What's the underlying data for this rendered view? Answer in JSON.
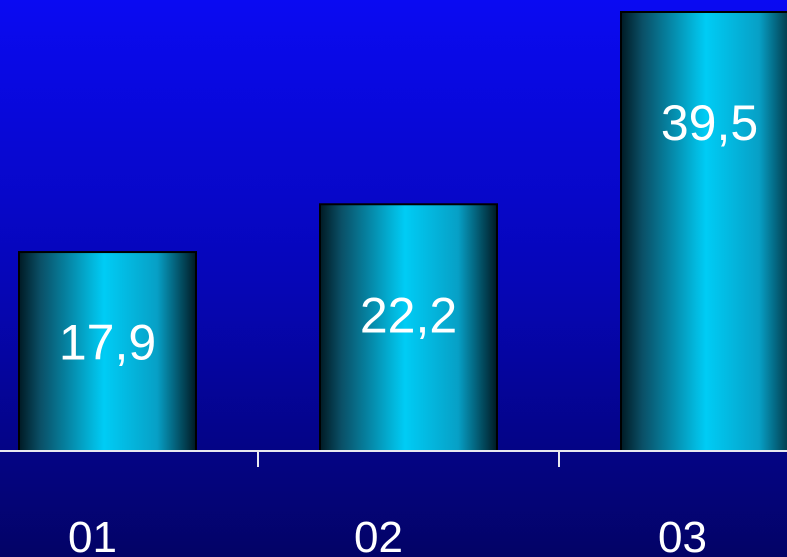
{
  "chart_data": {
    "type": "bar",
    "categories": [
      "01",
      "02",
      "03"
    ],
    "values": [
      17.9,
      22.2,
      39.5
    ],
    "value_labels": [
      "17,9",
      "22,2",
      "39,5"
    ],
    "title": "",
    "xlabel": "",
    "ylabel": "",
    "ylim": [
      0,
      40
    ],
    "grid": false,
    "legend": "none",
    "colors": {
      "background_top": "#0a0af2",
      "background_bottom": "#030366",
      "bar_dark": "#001a24",
      "bar_light": "#00ccf5",
      "axis": "#e8e8f0",
      "text": "#ffffff"
    }
  }
}
